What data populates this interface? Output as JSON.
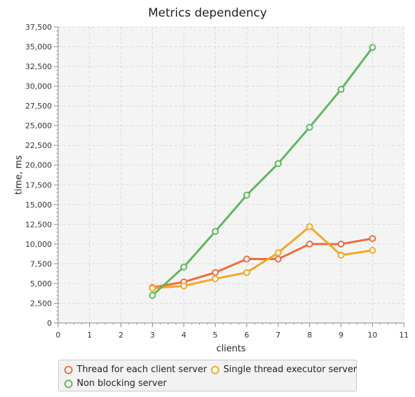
{
  "chart_data": {
    "type": "line",
    "title": "Metrics dependency",
    "xlabel": "clients",
    "ylabel": "time, ms",
    "xlim": [
      0,
      11
    ],
    "ylim": [
      0,
      37500
    ],
    "x_ticks": [
      0,
      1,
      2,
      3,
      4,
      5,
      6,
      7,
      8,
      9,
      10,
      11
    ],
    "y_ticks": [
      0,
      2500,
      5000,
      7500,
      10000,
      12500,
      15000,
      17500,
      20000,
      22500,
      25000,
      27500,
      30000,
      32500,
      35000,
      37500
    ],
    "y_tick_labels": [
      "0",
      "2,500",
      "5,000",
      "7,500",
      "10,000",
      "12,500",
      "15,000",
      "17,500",
      "20,000",
      "22,500",
      "25,000",
      "27,500",
      "30,000",
      "32,500",
      "35,000",
      "37,500"
    ],
    "grid": true,
    "legend_position": "bottom",
    "x": [
      3,
      4,
      5,
      6,
      7,
      8,
      9,
      10
    ],
    "series": [
      {
        "name": "Thread for each client server",
        "color": "#f06a3a",
        "values": [
          4500,
          5200,
          6400,
          8100,
          8100,
          10000,
          10000,
          10700
        ]
      },
      {
        "name": "Single thread executor server",
        "color": "#f5a623",
        "values": [
          4400,
          4700,
          5600,
          6400,
          8900,
          12200,
          8600,
          9200
        ]
      },
      {
        "name": "Non blocking server",
        "color": "#5cb85c",
        "values": [
          3500,
          7100,
          11600,
          16200,
          20200,
          24800,
          29600,
          34900
        ]
      }
    ]
  }
}
